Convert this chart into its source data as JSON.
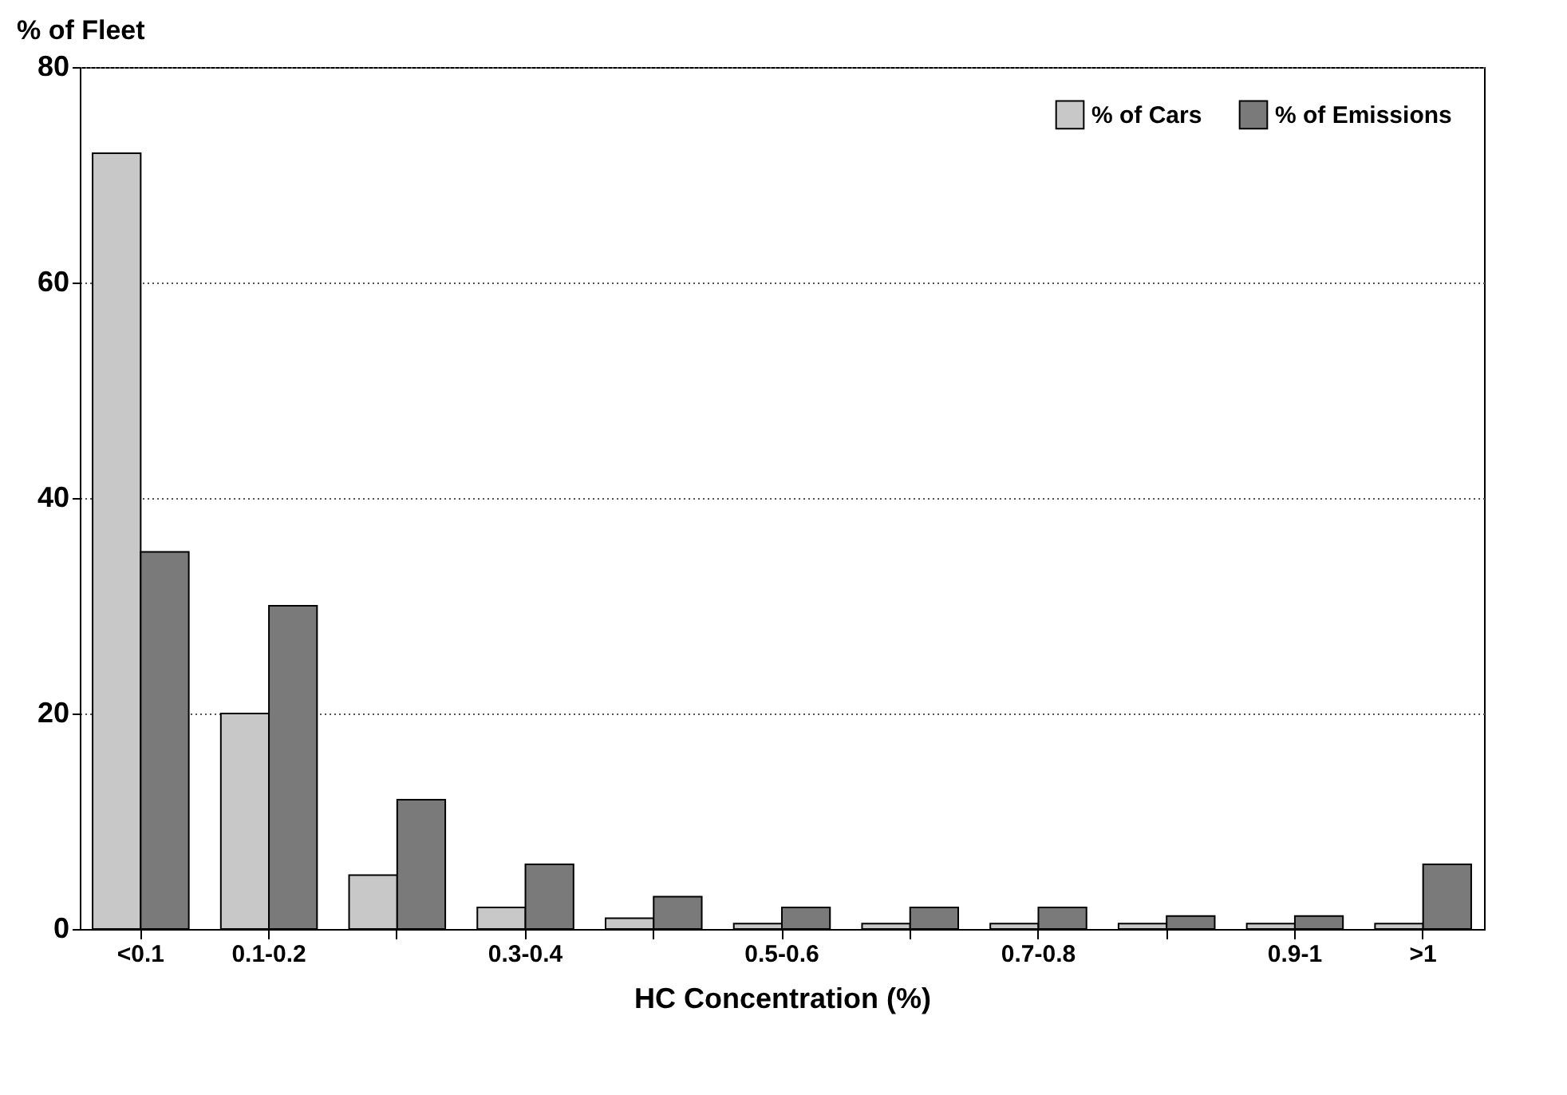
{
  "chart_data": {
    "type": "bar",
    "ylabel": "% of Fleet",
    "xlabel": "HC Concentration (%)",
    "categories": [
      "<0.1",
      "0.1-0.2",
      null,
      "0.3-0.4",
      null,
      "0.5-0.6",
      null,
      "0.7-0.8",
      null,
      "0.9-1",
      ">1"
    ],
    "series": [
      {
        "name": "% of Cars",
        "color": "#c8c8c8",
        "values": [
          72,
          20,
          5,
          2,
          1,
          0.5,
          0.5,
          0.5,
          0.5,
          0.5,
          0.5
        ]
      },
      {
        "name": "% of Emissions",
        "color": "#7a7a7a",
        "values": [
          35,
          30,
          12,
          6,
          3,
          2,
          2,
          2,
          1.2,
          1.2,
          6
        ]
      }
    ],
    "ylim": [
      0,
      80
    ],
    "yticks": [
      0,
      20,
      40,
      60,
      80
    ],
    "grid": "y",
    "legend": "top right"
  }
}
